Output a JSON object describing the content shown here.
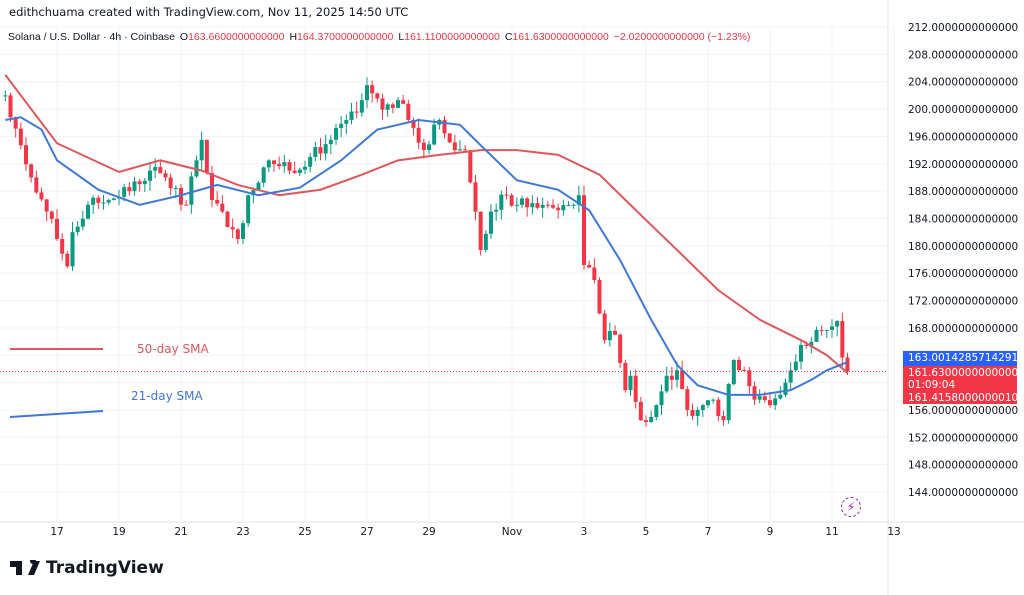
{
  "credit": "edithchuama created with TradingView.com, Nov 11, 2025 14:50 UTC",
  "legend": {
    "symbol": "Solana / U.S. Dollar · 4h · Coinbase",
    "o_label": "O",
    "o": "163.6600000000000",
    "h_label": "H",
    "h": "164.3700000000000",
    "l_label": "L",
    "l": "161.1100000000000",
    "c_label": "C",
    "c": "161.6300000000000",
    "change": "−2.0200000000000 (−1.23%)"
  },
  "annotations": {
    "sma50": "50-day SMA",
    "sma21": "21-day SMA"
  },
  "price_tags": {
    "sma21_value": "163.0014285714291",
    "last_price": "161.6300000000000",
    "countdown": "01:09:04",
    "sma50_value": "161.4158000000010"
  },
  "logo_text": "TradingView",
  "colors": {
    "up": "#089981",
    "down": "#f23645",
    "sma50": "#e0575b",
    "sma21": "#3f78d6",
    "sma21_tag": "#2962ff",
    "last_tag": "#f23645"
  },
  "icons": {
    "alert": "lightning-icon",
    "logo": "tradingview-logo-icon"
  },
  "chart_data": {
    "type": "candlestick",
    "title": "Solana / U.S. Dollar · 4h · Coinbase",
    "y_ticks": [
      "212.0000000000000",
      "208.0000000000000",
      "204.0000000000000",
      "200.0000000000000",
      "196.0000000000000",
      "192.0000000000000",
      "188.0000000000000",
      "184.0000000000000",
      "180.0000000000000",
      "176.0000000000000",
      "172.0000000000000",
      "168.0000000000000",
      "164.0000000000000",
      "160.0000000000000",
      "156.0000000000000",
      "152.0000000000000",
      "148.0000000000000",
      "144.0000000000000"
    ],
    "ylim": [
      144,
      212
    ],
    "x_ticks": [
      "17",
      "19",
      "21",
      "23",
      "25",
      "27",
      "29",
      "Nov",
      "3",
      "5",
      "7",
      "9",
      "11",
      "13"
    ],
    "grid": true,
    "close_path": [
      [
        "2025-10-15T08:00",
        202
      ],
      [
        "2025-10-15T20:00",
        194.7
      ],
      [
        "2025-10-16T04:00",
        190
      ],
      [
        "2025-10-16T16:00",
        185
      ],
      [
        "2025-10-17T00:00",
        181
      ],
      [
        "2025-10-17T08:00",
        177
      ],
      [
        "2025-10-17T12:00",
        182
      ],
      [
        "2025-10-18T00:00",
        186
      ],
      [
        "2025-10-18T16:00",
        186.7
      ],
      [
        "2025-10-19T08:00",
        188
      ],
      [
        "2025-10-20T00:00",
        191
      ],
      [
        "2025-10-20T12:00",
        190
      ],
      [
        "2025-10-21T04:00",
        186
      ],
      [
        "2025-10-21T16:00",
        195.5
      ],
      [
        "2025-10-22T00:00",
        186.7
      ],
      [
        "2025-10-22T08:00",
        185
      ],
      [
        "2025-10-22T20:00",
        181
      ],
      [
        "2025-10-23T04:00",
        187.4
      ],
      [
        "2025-10-23T20:00",
        192.5
      ],
      [
        "2025-10-24T12:00",
        191
      ],
      [
        "2025-10-25T04:00",
        193
      ],
      [
        "2025-10-25T20:00",
        195.5
      ],
      [
        "2025-10-26T08:00",
        198.4
      ],
      [
        "2025-10-26T20:00",
        201.3
      ],
      [
        "2025-10-27T00:00",
        203.5
      ],
      [
        "2025-10-27T12:00",
        199.9
      ],
      [
        "2025-10-28T00:00",
        201.3
      ],
      [
        "2025-10-28T08:00",
        198.4
      ],
      [
        "2025-10-28T20:00",
        194
      ],
      [
        "2025-10-29T08:00",
        198.4
      ],
      [
        "2025-10-29T20:00",
        194
      ],
      [
        "2025-10-30T04:00",
        194
      ],
      [
        "2025-10-30T12:00",
        185
      ],
      [
        "2025-10-30T16:00",
        179.4
      ],
      [
        "2025-10-31T00:00",
        185
      ],
      [
        "2025-10-31T12:00",
        187.4
      ],
      [
        "2025-10-31T20:00",
        186
      ],
      [
        "2025-11-01T16:00",
        186
      ],
      [
        "2025-11-02T04:00",
        185.2
      ],
      [
        "2025-11-02T16:00",
        186
      ],
      [
        "2025-11-02T20:00",
        187.4
      ],
      [
        "2025-11-03T00:00",
        177.2
      ],
      [
        "2025-11-03T08:00",
        175
      ],
      [
        "2025-11-03T16:00",
        166.2
      ],
      [
        "2025-11-04T00:00",
        167
      ],
      [
        "2025-11-04T08:00",
        158.9
      ],
      [
        "2025-11-04T12:00",
        161
      ],
      [
        "2025-11-04T20:00",
        154.5
      ],
      [
        "2025-11-05T08:00",
        156.7
      ],
      [
        "2025-11-05T16:00",
        161
      ],
      [
        "2025-11-06T00:00",
        161.8
      ],
      [
        "2025-11-06T08:00",
        156
      ],
      [
        "2025-11-06T16:00",
        156
      ],
      [
        "2025-11-07T04:00",
        157.5
      ],
      [
        "2025-11-07T12:00",
        154.5
      ],
      [
        "2025-11-07T20:00",
        163.3
      ],
      [
        "2025-11-08T04:00",
        161.8
      ],
      [
        "2025-11-08T12:00",
        157.5
      ],
      [
        "2025-11-09T00:00",
        156.7
      ],
      [
        "2025-11-09T08:00",
        158.2
      ],
      [
        "2025-11-09T16:00",
        161.8
      ],
      [
        "2025-11-10T00:00",
        165.5
      ],
      [
        "2025-11-10T12:00",
        167.7
      ],
      [
        "2025-11-10T20:00",
        167.7
      ],
      [
        "2025-11-11T04:00",
        169
      ],
      [
        "2025-11-11T08:00",
        163.66
      ]
    ],
    "last_candle": {
      "t": "2025-11-11T12:00",
      "o": 163.66,
      "h": 164.37,
      "l": 161.11,
      "c": 161.63
    },
    "series": [
      {
        "name": "50-day SMA",
        "points": [
          [
            "2025-10-15T08:00",
            205
          ],
          [
            "2025-10-16T04:00",
            200
          ],
          [
            "2025-10-17T00:00",
            195
          ],
          [
            "2025-10-19T00:00",
            190.8
          ],
          [
            "2025-10-20T08:00",
            192.5
          ],
          [
            "2025-10-21T16:00",
            191
          ],
          [
            "2025-10-22T20:00",
            188.9
          ],
          [
            "2025-10-24T04:00",
            187.4
          ],
          [
            "2025-10-25T12:00",
            188.2
          ],
          [
            "2025-10-26T20:00",
            190.4
          ],
          [
            "2025-10-28T00:00",
            192.5
          ],
          [
            "2025-10-29T08:00",
            193.3
          ],
          [
            "2025-10-30T16:00",
            194
          ],
          [
            "2025-10-31T20:00",
            194
          ],
          [
            "2025-11-02T04:00",
            193.3
          ],
          [
            "2025-11-03T12:00",
            190.4
          ],
          [
            "2025-11-04T20:00",
            184.5
          ],
          [
            "2025-11-06T00:00",
            179.4
          ],
          [
            "2025-11-07T08:00",
            173.5
          ],
          [
            "2025-11-08T16:00",
            169.2
          ],
          [
            "2025-11-10T00:00",
            166.2
          ],
          [
            "2025-11-10T20:00",
            164
          ],
          [
            "2025-11-11T12:00",
            161.42
          ]
        ]
      },
      {
        "name": "21-day SMA",
        "points": [
          [
            "2025-10-15T08:00",
            198.4
          ],
          [
            "2025-10-15T20:00",
            198.8
          ],
          [
            "2025-10-16T12:00",
            197
          ],
          [
            "2025-10-17T00:00",
            192.5
          ],
          [
            "2025-10-18T08:00",
            188.2
          ],
          [
            "2025-10-19T16:00",
            186
          ],
          [
            "2025-10-21T00:00",
            187.4
          ],
          [
            "2025-10-22T04:00",
            188.9
          ],
          [
            "2025-10-23T12:00",
            187.4
          ],
          [
            "2025-10-24T20:00",
            188.5
          ],
          [
            "2025-10-26T04:00",
            192.5
          ],
          [
            "2025-10-27T08:00",
            197
          ],
          [
            "2025-10-28T16:00",
            198.4
          ],
          [
            "2025-10-30T00:00",
            197.7
          ],
          [
            "2025-10-30T16:00",
            194.7
          ],
          [
            "2025-10-31T20:00",
            189.6
          ],
          [
            "2025-11-02T04:00",
            188.2
          ],
          [
            "2025-11-03T04:00",
            185.2
          ],
          [
            "2025-11-04T04:00",
            177.9
          ],
          [
            "2025-11-05T04:00",
            169.2
          ],
          [
            "2025-11-06T00:00",
            162.6
          ],
          [
            "2025-11-06T16:00",
            159.6
          ],
          [
            "2025-11-07T16:00",
            158.2
          ],
          [
            "2025-11-08T16:00",
            158.2
          ],
          [
            "2025-11-09T16:00",
            158.9
          ],
          [
            "2025-11-10T08:00",
            160.4
          ],
          [
            "2025-11-10T20:00",
            161.8
          ],
          [
            "2025-11-11T12:00",
            163.0
          ]
        ]
      }
    ]
  }
}
